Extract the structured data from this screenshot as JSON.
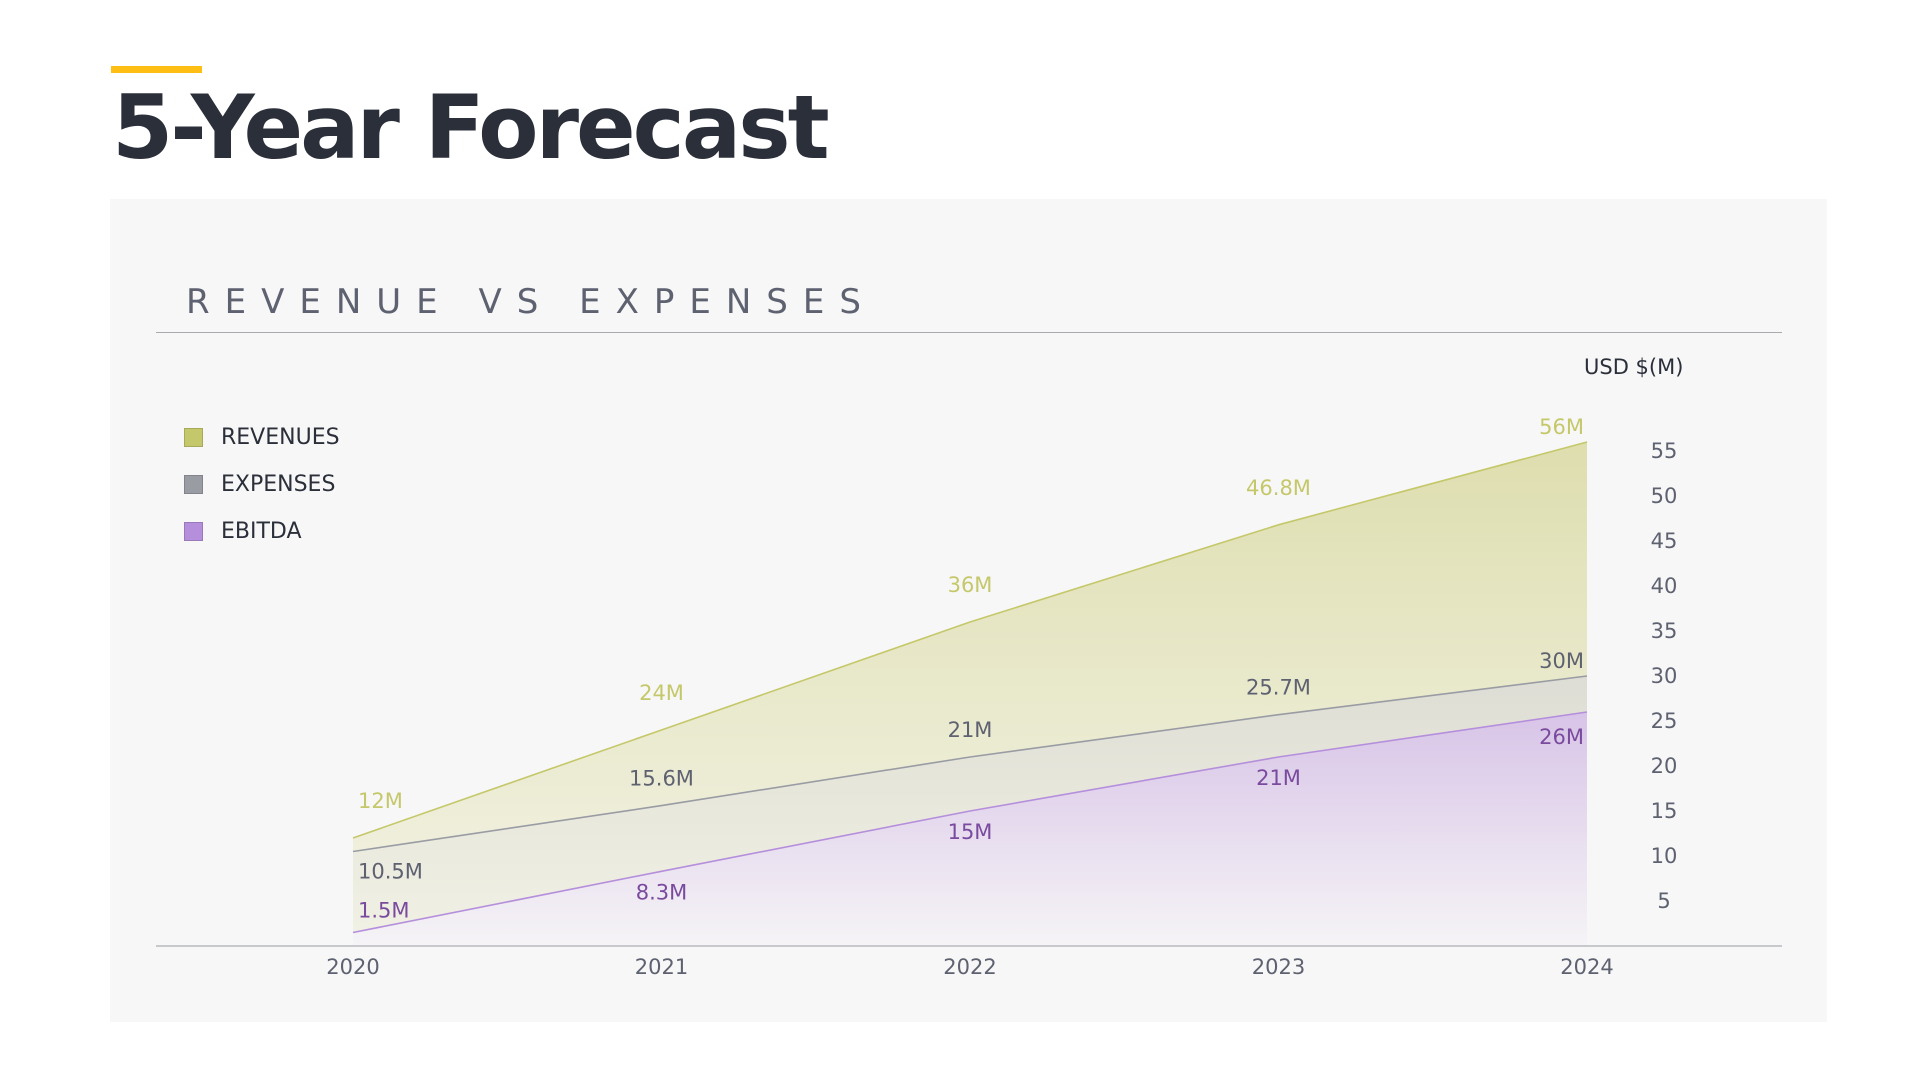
{
  "header": {
    "title": "5-Year Forecast"
  },
  "colors": {
    "accent": "#FFBE14",
    "revenues": "#C5C86A",
    "expenses": "#9A9CA4",
    "ebitda": "#B58FDC",
    "revenues_text": "#C5C86A",
    "expenses_text": "#5E6170",
    "ebitda_text": "#7A4A9E"
  },
  "chart_data": {
    "type": "area",
    "title": "REVENUE VS EXPENSES",
    "ylabel": "USD $(M)",
    "xlabel": "",
    "categories": [
      "2020",
      "2021",
      "2022",
      "2023",
      "2024"
    ],
    "yticks": [
      "5",
      "10",
      "15",
      "20",
      "25",
      "30",
      "35",
      "40",
      "45",
      "50",
      "55"
    ],
    "ylim": [
      0,
      58
    ],
    "grid": false,
    "legend_position": "top-left",
    "series": [
      {
        "name": "REVENUES",
        "values": [
          12,
          24,
          36,
          46.8,
          56
        ],
        "labels": [
          "12M",
          "24M",
          "36M",
          "46.8M",
          "56M"
        ]
      },
      {
        "name": "EXPENSES",
        "values": [
          10.5,
          15.6,
          21,
          25.7,
          30
        ],
        "labels": [
          "10.5M",
          "15.6M",
          "21M",
          "25.7M",
          "30M"
        ]
      },
      {
        "name": "EBITDA",
        "values": [
          1.5,
          8.3,
          15,
          21,
          26
        ],
        "labels": [
          "1.5M",
          "8.3M",
          "15M",
          "21M",
          "26M"
        ]
      }
    ]
  }
}
